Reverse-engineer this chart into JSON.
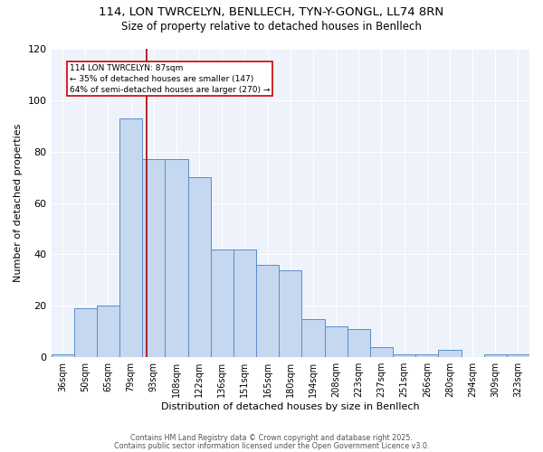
{
  "title1": "114, LON TWRCELYN, BENLLECH, TYN-Y-GONGL, LL74 8RN",
  "title2": "Size of property relative to detached houses in Benllech",
  "xlabel": "Distribution of detached houses by size in Benllech",
  "ylabel": "Number of detached properties",
  "categories": [
    "36sqm",
    "50sqm",
    "65sqm",
    "79sqm",
    "93sqm",
    "108sqm",
    "122sqm",
    "136sqm",
    "151sqm",
    "165sqm",
    "180sqm",
    "194sqm",
    "208sqm",
    "223sqm",
    "237sqm",
    "251sqm",
    "266sqm",
    "280sqm",
    "294sqm",
    "309sqm",
    "323sqm"
  ],
  "values": [
    1,
    19,
    20,
    93,
    77,
    77,
    70,
    42,
    42,
    36,
    34,
    15,
    12,
    11,
    4,
    1,
    1,
    3,
    0,
    1,
    1
  ],
  "bar_color": "#c5d8f0",
  "bar_edge_color": "#5b8dc8",
  "background_color": "#edf2fb",
  "vline_x": 3.7,
  "vline_color": "#aa0000",
  "annotation_text": "114 LON TWRCELYN: 87sqm\n← 35% of detached houses are smaller (147)\n64% of semi-detached houses are larger (270) →",
  "ylim": [
    0,
    120
  ],
  "yticks": [
    0,
    20,
    40,
    60,
    80,
    100,
    120
  ],
  "footer1": "Contains HM Land Registry data © Crown copyright and database right 2025.",
  "footer2": "Contains public sector information licensed under the Open Government Licence v3.0."
}
